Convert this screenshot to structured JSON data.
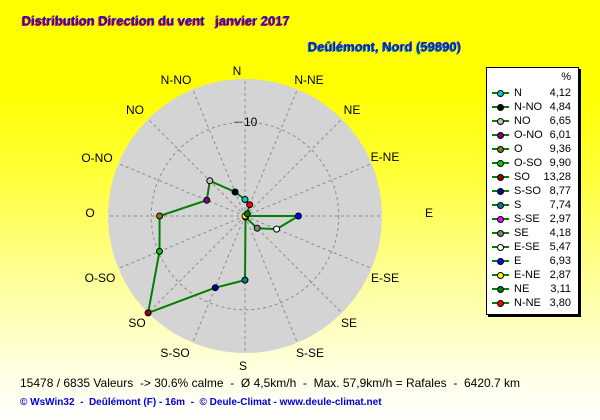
{
  "title": "Distribution Direction du vent   janvier 2017",
  "subtitle": "Deûlémont, Nord (59890)",
  "legend": {
    "header": "%"
  },
  "chart_data": {
    "type": "radar",
    "title": "Distribution Direction du vent   janvier 2017",
    "location": "Deûlémont, Nord (59890)",
    "unit": "%",
    "categories": [
      "N",
      "N-NO",
      "NO",
      "O-NO",
      "O",
      "O-SO",
      "SO",
      "S-SO",
      "S",
      "S-SE",
      "SE",
      "E-SE",
      "E",
      "E-NE",
      "NE",
      "N-NE"
    ],
    "values": [
      4.12,
      4.84,
      6.65,
      6.01,
      9.36,
      9.9,
      13.28,
      8.77,
      7.74,
      2.97,
      4.18,
      5.47,
      6.93,
      2.87,
      3.11,
      3.8
    ],
    "display_values": [
      "4,12",
      "4,84",
      "6,65",
      "6,01",
      "9,36",
      "9,90",
      "13,28",
      "8,77",
      "7,74",
      "2,97",
      "4,18",
      "5,47",
      "6,93",
      "2,87",
      "3,11",
      "3,80"
    ],
    "point_colors": [
      "#00cccc",
      "#000000",
      "#c0c0c0",
      "#800080",
      "#808000",
      "#00cc00",
      "#990000",
      "#000099",
      "#008080",
      "#ff00ff",
      "#808080",
      "#ffffff",
      "#0000ff",
      "#ffff00",
      "#008000",
      "#ff0000"
    ],
    "line_color": "#008000",
    "grid": {
      "ring_label": "10",
      "ring_value": 10,
      "area_fill": "#d4d4d4",
      "grid_color": "#8c8c8c",
      "style": "dashed"
    },
    "scale": {
      "center_value": 2.87,
      "edge_value": 13.28
    },
    "legend_position": "right"
  },
  "status_line": "15478 / 6835 Valeurs  -> 30.6% calme  -  Ø 4,5km/h  -  Max. 57,9km/h = Rafales  -  6420.7 km",
  "footer": {
    "text": "© WsWin32  -  Deûlémont (F) - 16m  -  © Deule-Climat - ",
    "url": "www.deule-climat.net"
  }
}
